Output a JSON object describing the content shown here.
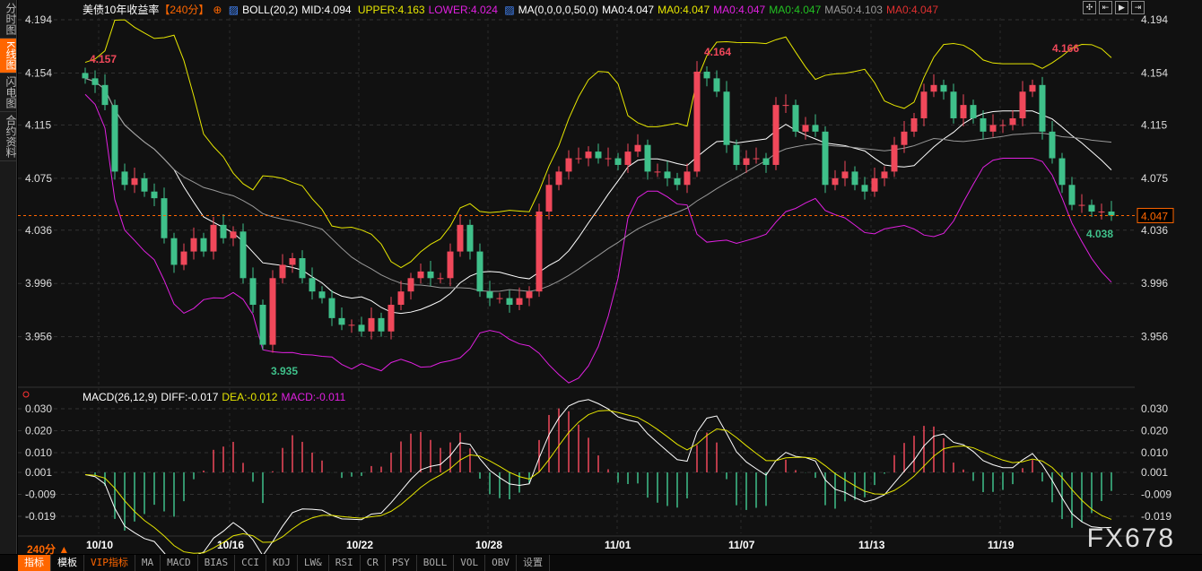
{
  "sidebar": {
    "items": [
      {
        "label": "分时图",
        "active": false
      },
      {
        "label": "K线图",
        "active": true
      },
      {
        "label": "闪电图",
        "active": false
      },
      {
        "label": "合约资料",
        "active": false
      }
    ]
  },
  "legend": {
    "title": "美债10年收益率",
    "period": "【240分】",
    "add_icon": "crosshair-plus",
    "boll": "BOLL(20,2)",
    "mid": "MID:4.094",
    "upper": "UPPER:4.163",
    "lower": "LOWER:4.024",
    "ma": "MA(0,0,0,0,50,0)",
    "ma_vals": [
      {
        "text": "MA0:4.047",
        "color": "#ffffff"
      },
      {
        "text": "MA0:4.047",
        "color": "#e6e600"
      },
      {
        "text": "MA0:4.047",
        "color": "#e020e0"
      },
      {
        "text": "MA0:4.047",
        "color": "#22c022"
      },
      {
        "text": "MA50:4.103",
        "color": "#999999"
      },
      {
        "text": "MA0:4.047",
        "color": "#e03030"
      }
    ]
  },
  "macd_legend": {
    "name": "MACD(26,12,9)",
    "diff": "DIFF:-0.017",
    "dea": "DEA:-0.012",
    "macd": "MACD:-0.011"
  },
  "tools": [
    "move",
    "fit",
    "play",
    "end"
  ],
  "period_selector": "240分 ▲",
  "toolbar": [
    "指标",
    "模板",
    "VIP指标",
    "MA",
    "MACD",
    "BIAS",
    "CCI",
    "KDJ",
    "LW&",
    "RSI",
    "CR",
    "PSY",
    "BOLL",
    "VOL",
    "OBV",
    "设置"
  ],
  "watermark": "FX678",
  "colors": {
    "up": "#f0485a",
    "down": "#3fc08a",
    "mid": "#ffffff",
    "upper": "#e6e600",
    "lower": "#e020e0",
    "ma50": "#999999",
    "accent": "#ff6600"
  },
  "chart_data": {
    "type": "candlestick",
    "y_ticks": [
      "4.194",
      "4.154",
      "4.115",
      "4.075",
      "4.036",
      "3.996",
      "3.956"
    ],
    "ylim": [
      3.925,
      4.205
    ],
    "x_ticks": [
      "10/10",
      "10/16",
      "10/22",
      "10/28",
      "11/01",
      "11/07",
      "11/13",
      "11/19"
    ],
    "closes": [
      4.15,
      4.145,
      4.13,
      4.08,
      4.07,
      4.075,
      4.065,
      4.06,
      4.03,
      4.01,
      4.02,
      4.03,
      4.02,
      4.04,
      4.03,
      4.035,
      4.0,
      3.98,
      3.95,
      4.0,
      4.01,
      4.015,
      4.0,
      3.99,
      3.985,
      3.97,
      3.965,
      3.965,
      3.96,
      3.97,
      3.96,
      3.98,
      3.99,
      4.0,
      4.005,
      4.0,
      4.0,
      4.02,
      4.04,
      4.02,
      3.99,
      3.985,
      3.985,
      3.98,
      3.985,
      3.99,
      4.05,
      4.07,
      4.08,
      4.09,
      4.09,
      4.095,
      4.09,
      4.09,
      4.085,
      4.095,
      4.1,
      4.08,
      4.08,
      4.075,
      4.07,
      4.08,
      4.155,
      4.15,
      4.14,
      4.1,
      4.085,
      4.09,
      4.09,
      4.085,
      4.13,
      4.13,
      4.11,
      4.115,
      4.11,
      4.07,
      4.075,
      4.08,
      4.07,
      4.065,
      4.075,
      4.08,
      4.1,
      4.11,
      4.12,
      4.14,
      4.145,
      4.14,
      4.12,
      4.13,
      4.12,
      4.11,
      4.115,
      4.115,
      4.12,
      4.14,
      4.145,
      4.11,
      4.09,
      4.07,
      4.055,
      4.055,
      4.05,
      4.05,
      4.047
    ],
    "annotations": [
      {
        "text": "4.157",
        "type": "high"
      },
      {
        "text": "3.935",
        "type": "low"
      },
      {
        "text": "4.164",
        "type": "high"
      },
      {
        "text": "4.166",
        "type": "high"
      },
      {
        "text": "4.038",
        "type": "low"
      }
    ],
    "last_price": "4.047",
    "macd": {
      "y_ticks": [
        "0.030",
        "0.020",
        "0.010",
        "0.001",
        "-0.009",
        "-0.019"
      ],
      "ylim": [
        -0.025,
        0.032
      ]
    }
  }
}
